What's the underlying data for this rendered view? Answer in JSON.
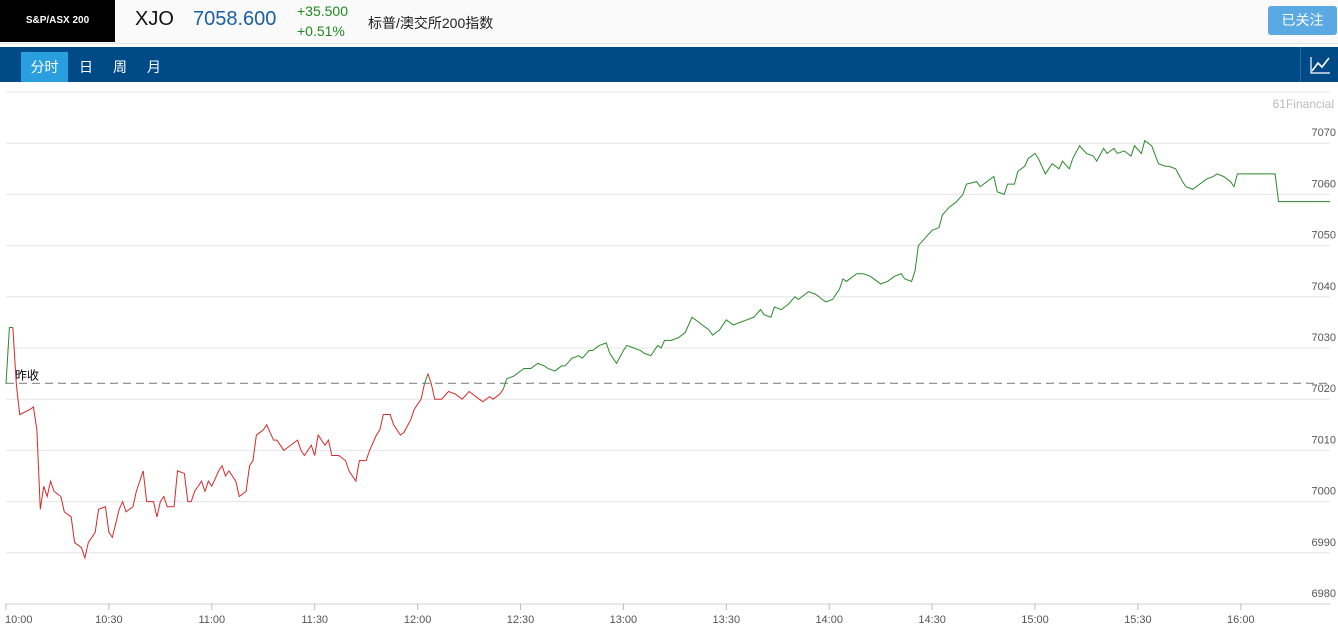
{
  "header": {
    "logo": "S&P/ASX 200",
    "symbol": "XJO",
    "price": "7058.600",
    "change": "+35.500",
    "change_pct": "+0.51%",
    "name": "标普/澳交所200指数",
    "button": "已关注"
  },
  "tabs": [
    "分时",
    "日",
    "周",
    "月"
  ],
  "watermark": "61Financial",
  "chart_data": {
    "type": "line",
    "x": [
      "10:00",
      "10:01",
      "10:02",
      "10:03",
      "10:04",
      "10:07",
      "10:08",
      "10:09",
      "10:10",
      "10:11",
      "10:12",
      "10:13",
      "10:14",
      "10:16",
      "10:17",
      "10:19",
      "10:20",
      "10:22",
      "10:23",
      "10:24",
      "10:26",
      "10:27",
      "10:29",
      "10:30",
      "10:31",
      "10:33",
      "10:34",
      "10:35",
      "10:37",
      "10:38",
      "10:40",
      "10:41",
      "10:43",
      "10:44",
      "10:45",
      "10:46",
      "10:47",
      "10:49",
      "10:50",
      "10:52",
      "10:53",
      "10:54",
      "10:55",
      "10:57",
      "10:58",
      "10:59",
      "11:00",
      "11:02",
      "11:03",
      "11:04",
      "11:05",
      "11:07",
      "11:08",
      "11:10",
      "11:11",
      "11:12",
      "11:13",
      "11:15",
      "11:16",
      "11:18",
      "11:19",
      "11:21",
      "11:23",
      "11:25",
      "11:26",
      "11:27",
      "11:29",
      "11:30",
      "11:31",
      "11:33",
      "11:34",
      "11:35",
      "11:37",
      "11:39",
      "11:40",
      "11:42",
      "11:43",
      "11:45",
      "11:46",
      "11:48",
      "11:49",
      "11:50",
      "11:52",
      "11:53",
      "11:55",
      "11:56",
      "11:58",
      "11:59",
      "12:01",
      "12:02",
      "12:03",
      "12:04",
      "12:05",
      "12:07",
      "12:09",
      "12:11",
      "12:13",
      "12:15",
      "12:18",
      "12:19",
      "12:21",
      "12:22",
      "12:24",
      "12:25",
      "12:26",
      "12:28",
      "12:29",
      "12:31",
      "12:33",
      "12:35",
      "12:37",
      "12:38",
      "12:40",
      "12:42",
      "12:43",
      "12:45",
      "12:47",
      "12:48",
      "12:50",
      "12:51",
      "12:53",
      "12:55",
      "12:56",
      "12:58",
      "13:00",
      "13:01",
      "13:03",
      "13:05",
      "13:06",
      "13:08",
      "13:10",
      "13:11",
      "13:12",
      "13:14",
      "13:16",
      "13:18",
      "13:20",
      "13:22",
      "13:25",
      "13:26",
      "13:28",
      "13:30",
      "13:32",
      "13:34",
      "13:36",
      "13:38",
      "13:40",
      "13:41",
      "13:43",
      "13:44",
      "13:46",
      "13:48",
      "13:50",
      "13:51",
      "13:54",
      "13:56",
      "13:58",
      "13:59",
      "14:01",
      "14:03",
      "14:04",
      "14:05",
      "14:08",
      "14:10",
      "14:12",
      "14:14",
      "14:15",
      "14:17",
      "14:19",
      "14:21",
      "14:22",
      "14:24",
      "14:25",
      "14:26",
      "14:28",
      "14:30",
      "14:32",
      "14:33",
      "14:35",
      "14:37",
      "14:39",
      "14:40",
      "14:43",
      "14:44",
      "14:46",
      "14:48",
      "14:49",
      "14:51",
      "14:52",
      "14:54",
      "14:55",
      "14:57",
      "14:58",
      "15:00",
      "15:01",
      "15:03",
      "15:05",
      "15:07",
      "15:08",
      "15:10",
      "15:11",
      "15:13",
      "15:15",
      "15:17",
      "15:18",
      "15:20",
      "15:21",
      "15:23",
      "15:24",
      "15:26",
      "15:28",
      "15:29",
      "15:31",
      "15:32",
      "15:34",
      "15:36",
      "15:38",
      "15:39",
      "15:41",
      "15:43",
      "15:44",
      "15:46",
      "15:48",
      "15:50",
      "15:52",
      "15:53",
      "15:55",
      "15:57",
      "15:58",
      "15:59",
      "16:10",
      "16:11",
      "16:26"
    ],
    "series": [
      {
        "up_color": "#2a8a2a",
        "down_color": "#d42a2a",
        "values": [
          7023,
          7034,
          7034,
          7023,
          7017,
          7018,
          7018.5,
          7014,
          6998.5,
          7003,
          7001,
          7004,
          7002,
          7001,
          6998,
          6997,
          6992,
          6991,
          6989,
          6992,
          6994,
          6998.5,
          6999,
          6994,
          6993,
          6998.5,
          7000,
          6998,
          6999,
          7002,
          7006,
          7000,
          7000,
          6997,
          7000,
          7001,
          6999,
          6999,
          7006,
          7005.5,
          7000,
          7000,
          7002,
          7004,
          7002,
          7004,
          7003,
          7006,
          7007,
          7005,
          7006,
          7004,
          7001,
          7002,
          7007,
          7008,
          7013,
          7014,
          7015,
          7012,
          7012,
          7010,
          7011,
          7012,
          7010,
          7009,
          7011,
          7009,
          7013,
          7011,
          7012,
          7009,
          7009,
          7008,
          7006,
          7004,
          7008,
          7008,
          7010,
          7013,
          7014,
          7017,
          7017,
          7015,
          7013,
          7013.5,
          7016,
          7018,
          7020,
          7023,
          7025,
          7023,
          7020,
          7020,
          7021.5,
          7021,
          7020,
          7021.5,
          7020,
          7019.5,
          7020.5,
          7020,
          7021,
          7022,
          7024,
          7024.5,
          7025,
          7026,
          7026,
          7027,
          7026.5,
          7026,
          7025.5,
          7026.5,
          7026.5,
          7028,
          7028.5,
          7028,
          7029.5,
          7029.5,
          7030.5,
          7031,
          7029,
          7027,
          7029.5,
          7030.5,
          7030,
          7029.5,
          7029,
          7028.5,
          7030.5,
          7030,
          7031.5,
          7031.5,
          7032,
          7033,
          7036,
          7035,
          7033.5,
          7032.5,
          7033.5,
          7035.5,
          7034.5,
          7035,
          7035.5,
          7036,
          7037.5,
          7036.5,
          7036,
          7038,
          7037.5,
          7038.5,
          7040,
          7039.5,
          7041,
          7040.5,
          7039.5,
          7039,
          7039.5,
          7041.5,
          7043.5,
          7043,
          7044.5,
          7044.5,
          7044,
          7043,
          7042.5,
          7043,
          7044,
          7044.5,
          7043.5,
          7043,
          7045,
          7050,
          7051.5,
          7053,
          7053.5,
          7056,
          7057.5,
          7058.5,
          7060,
          7062,
          7062.5,
          7061.5,
          7062.5,
          7063.5,
          7060.5,
          7060,
          7062,
          7062,
          7064.5,
          7065.5,
          7067,
          7068,
          7067,
          7064,
          7066,
          7065,
          7066.5,
          7065,
          7067,
          7069.5,
          7068,
          7067.5,
          7066.5,
          7069,
          7068,
          7069,
          7068,
          7068.5,
          7067.5,
          7069.5,
          7068,
          7070.5,
          7069.5,
          7066,
          7065.5,
          7065.5,
          7065,
          7062.5,
          7061.5,
          7061,
          7062,
          7063,
          7063.5,
          7064,
          7063.5,
          7062.5,
          7061.5,
          7064,
          7064,
          7058.6,
          7058.6
        ]
      }
    ],
    "baseline": {
      "value": 7023.1,
      "label": "昨收"
    },
    "xlim": [
      "10:00",
      "16:26"
    ],
    "xticks": [
      "10:00",
      "10:30",
      "11:00",
      "11:30",
      "12:00",
      "12:30",
      "13:00",
      "13:30",
      "14:00",
      "14:30",
      "15:00",
      "15:30",
      "16:00"
    ],
    "ylim": [
      6980,
      7080
    ],
    "yticks": [
      6980,
      6990,
      7000,
      7010,
      7020,
      7030,
      7040,
      7050,
      7060,
      7070
    ],
    "grid": true
  }
}
